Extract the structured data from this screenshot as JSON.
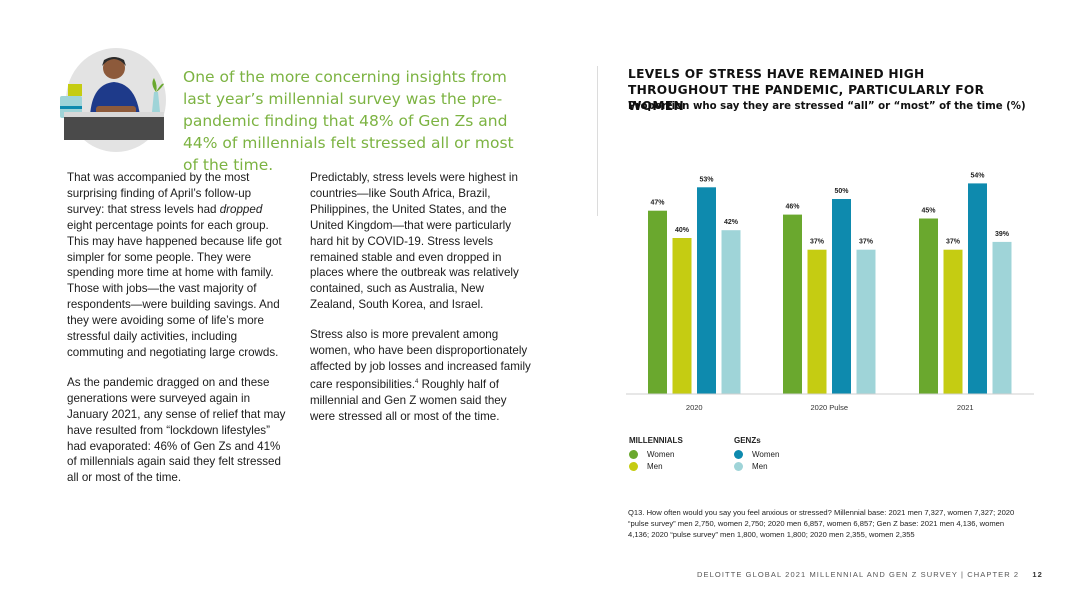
{
  "pullquote": "One of the more concerning insights from last year’s millennial survey was the pre-pandemic finding that 48% of Gen Zs and 44% of millennials felt stressed all or most of the time.",
  "column1": {
    "p1_before": "That was accompanied by the most surprising finding of April’s follow-up survey: that stress levels had ",
    "p1_em": "dropped",
    "p1_after": " eight percentage points for each group. This may have happened because life got simpler for some people. They were spending more time at home with family. Those with jobs—the vast majority of respondents—were building savings. And they were avoiding some of life’s more stressful daily activities, including commuting and negotiating large crowds.",
    "p2": "As the pandemic dragged on and these generations were surveyed again in January 2021, any sense of relief that may have resulted from “lockdown lifestyles” had evaporated: 46% of Gen Zs and 41% of millennials again said they felt stressed all or most of the time."
  },
  "column2": {
    "p1": "Predictably, stress levels were highest in countries—like South Africa, Brazil, Philippines, the United States, and the United Kingdom—that were particularly hard hit by COVID-19. Stress levels remained stable and even dropped in places where the outbreak was relatively contained, such as Australia, New Zealand, South Korea, and Israel.",
    "p2_before": "Stress also is more prevalent among women, who have been disproportionately affected by job losses and increased family care responsibilities.",
    "p2_sup": "4",
    "p2_after": " Roughly half of millennial and Gen Z women said they were stressed all or most of the time."
  },
  "chart_data": {
    "type": "bar",
    "title": "LEVELS OF STRESS HAVE REMAINED HIGH THROUGHOUT THE PANDEMIC, PARTICULARLY FOR WOMEN",
    "subtitle": "Proportion who say they are stressed “all” or “most” of the time (%)",
    "categories": [
      "2020",
      "2020 Pulse",
      "2021"
    ],
    "series": [
      {
        "name": "Millennials Women",
        "group": "MILLENNIALS",
        "label": "Women",
        "color": "#6aa82e",
        "values": [
          47,
          46,
          45
        ]
      },
      {
        "name": "Millennials Men",
        "group": "MILLENNIALS",
        "label": "Men",
        "color": "#c5cc12",
        "values": [
          40,
          37,
          37
        ]
      },
      {
        "name": "GenZs Women",
        "group": "GENZs",
        "label": "Women",
        "color": "#0e8aae",
        "values": [
          53,
          50,
          54
        ]
      },
      {
        "name": "GenZs Men",
        "group": "GENZs",
        "label": "Men",
        "color": "#9fd4d8",
        "values": [
          42,
          37,
          39
        ]
      }
    ],
    "value_suffix": "%",
    "ylim": [
      0,
      100
    ],
    "grid": false,
    "legend_position": "bottom-left"
  },
  "legend": {
    "millennials_title": "MILLENNIALS",
    "genz_title": "GENZs",
    "women": "Women",
    "men": "Men"
  },
  "footnote": "Q13. How often would you say you feel anxious or stressed? Millennial base: 2021 men 7,327, women 7,327; 2020 “pulse survey” men 2,750, women 2,750; 2020 men 6,857, women 6,857; Gen Z base: 2021 men 4,136, women 4,136; 2020 “pulse survey” men 1,800, women 1,800; 2020 men 2,355, women 2,355",
  "footer": {
    "text": "DELOITTE GLOBAL 2021 MILLENNIAL AND GEN Z SURVEY | CHAPTER 2",
    "page": "12"
  }
}
